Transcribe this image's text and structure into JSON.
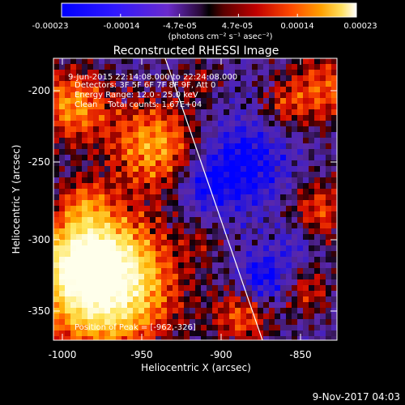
{
  "colorbar": {
    "ticks": [
      "-0.00023",
      "-0.00014",
      "-4.7e-05",
      "4.7e-05",
      "0.00014",
      "0.00023"
    ],
    "unit_label": "(photons cm⁻² s⁻¹ asec⁻²)"
  },
  "title": "Reconstructed RHESSI Image",
  "info": {
    "time": "9-Jun-2015 22:14:08.000 to 22:24:08.000",
    "detectors": "Detectors: 3F 5F 6F 7F 8F 9F, Att 0",
    "energy": "Energy Range: 12.0 - 25.0 keV",
    "clean": "Clean    Total counts: 1.67E+04"
  },
  "position_label": "Position of Peak = [-962,-326]",
  "axes": {
    "xlabel": "Heliocentric X (arcsec)",
    "ylabel": "Heliocentric Y (arcsec)",
    "xticks": [
      "-1000",
      "-950",
      "-900",
      "-850"
    ],
    "yticks": [
      "-200",
      "-250",
      "-300",
      "-350"
    ]
  },
  "footer": {
    "date": "9-Nov-2017 04:03"
  }
}
